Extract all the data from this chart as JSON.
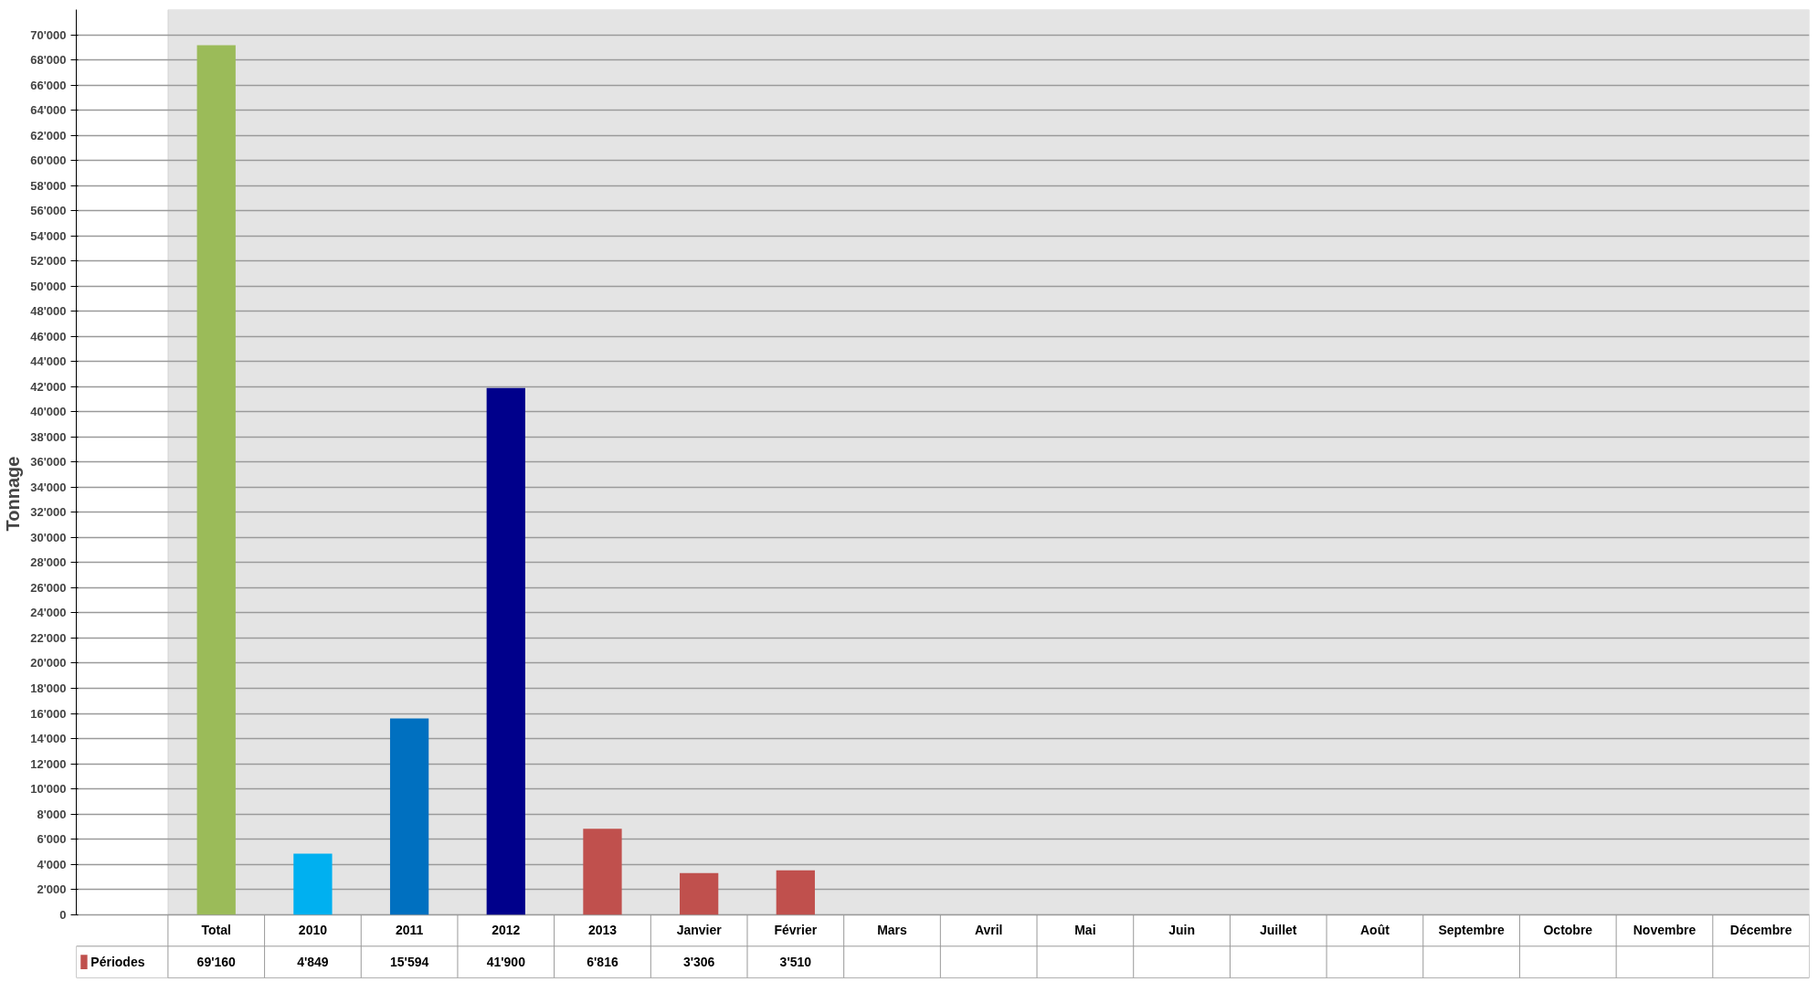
{
  "chart_data": {
    "type": "bar",
    "ylabel": "Tonnage",
    "categories": [
      "Total",
      "2010",
      "2011",
      "2012",
      "2013",
      "Janvier",
      "Février",
      "Mars",
      "Avril",
      "Mai",
      "Juin",
      "Juillet",
      "Août",
      "Septembre",
      "Octobre",
      "Novembre",
      "Décembre"
    ],
    "series": [
      {
        "name": "Périodes",
        "color": "#c0504d",
        "colors": [
          "#9bbb59",
          "#00b0f0",
          "#0070c0",
          "#00008b",
          "#c0504d",
          "#c0504d",
          "#c0504d",
          null,
          null,
          null,
          null,
          null,
          null,
          null,
          null,
          null,
          null
        ],
        "values": [
          69160,
          4849,
          15594,
          41900,
          6816,
          3306,
          3510,
          null,
          null,
          null,
          null,
          null,
          null,
          null,
          null,
          null,
          null
        ],
        "value_labels": [
          "69'160",
          "4'849",
          "15'594",
          "41'900",
          "6'816",
          "3'306",
          "3'510",
          null,
          null,
          null,
          null,
          null,
          null,
          null,
          null,
          null,
          null
        ]
      }
    ],
    "data_labels": true,
    "ylim": [
      0,
      72000
    ],
    "yticks": [
      {
        "value": 0,
        "label": "0"
      },
      {
        "value": 2000,
        "label": "2'000"
      },
      {
        "value": 4000,
        "label": "4'000"
      },
      {
        "value": 6000,
        "label": "6'000"
      },
      {
        "value": 8000,
        "label": "8'000"
      },
      {
        "value": 10000,
        "label": "10'000"
      },
      {
        "value": 12000,
        "label": "12'000"
      },
      {
        "value": 14000,
        "label": "14'000"
      },
      {
        "value": 16000,
        "label": "16'000"
      },
      {
        "value": 18000,
        "label": "18'000"
      },
      {
        "value": 20000,
        "label": "20'000"
      },
      {
        "value": 22000,
        "label": "22'000"
      },
      {
        "value": 24000,
        "label": "24'000"
      },
      {
        "value": 26000,
        "label": "26'000"
      },
      {
        "value": 28000,
        "label": "28'000"
      },
      {
        "value": 30000,
        "label": "30'000"
      },
      {
        "value": 32000,
        "label": "32'000"
      },
      {
        "value": 34000,
        "label": "34'000"
      },
      {
        "value": 36000,
        "label": "36'000"
      },
      {
        "value": 38000,
        "label": "38'000"
      },
      {
        "value": 40000,
        "label": "40'000"
      },
      {
        "value": 42000,
        "label": "42'000"
      },
      {
        "value": 44000,
        "label": "44'000"
      },
      {
        "value": 46000,
        "label": "46'000"
      },
      {
        "value": 48000,
        "label": "48'000"
      },
      {
        "value": 50000,
        "label": "50'000"
      },
      {
        "value": 52000,
        "label": "52'000"
      },
      {
        "value": 54000,
        "label": "54'000"
      },
      {
        "value": 56000,
        "label": "56'000"
      },
      {
        "value": 58000,
        "label": "58'000"
      },
      {
        "value": 60000,
        "label": "60'000"
      },
      {
        "value": 62000,
        "label": "62'000"
      },
      {
        "value": 64000,
        "label": "64'000"
      },
      {
        "value": 66000,
        "label": "66'000"
      },
      {
        "value": 68000,
        "label": "68'000"
      },
      {
        "value": 70000,
        "label": "70'000"
      }
    ],
    "grid": "y",
    "legend": "bottom left"
  }
}
